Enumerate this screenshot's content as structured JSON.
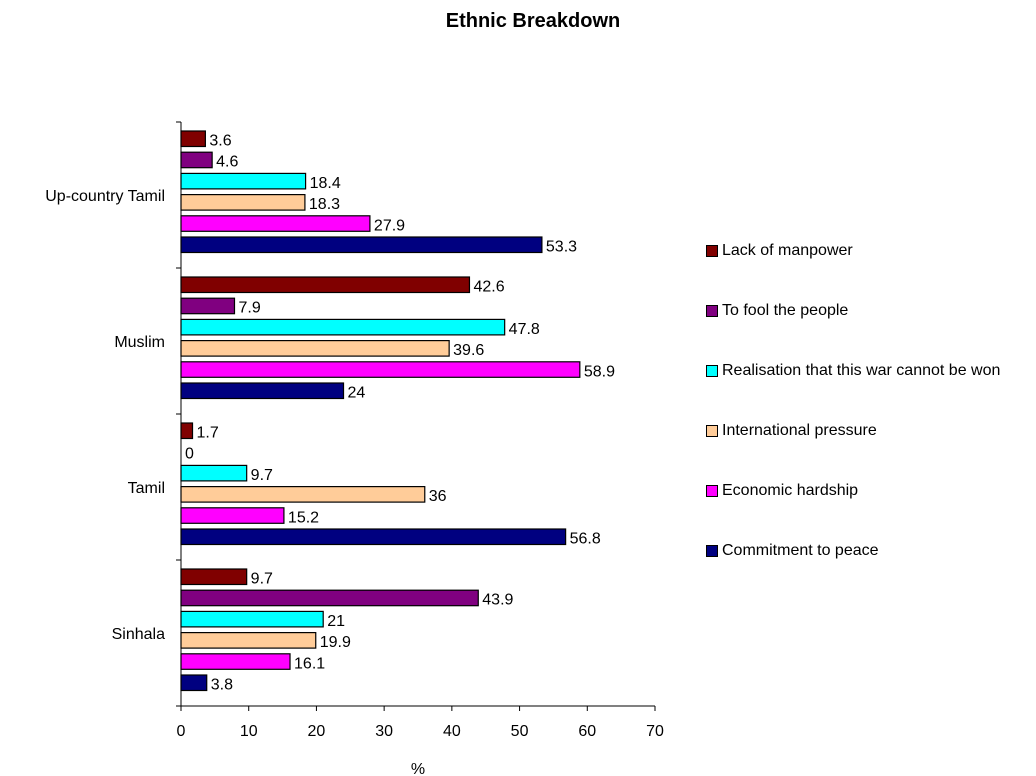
{
  "chart_data": {
    "type": "bar",
    "orientation": "horizontal",
    "title": "Ethnic Breakdown",
    "xlabel": "%",
    "ylabel": "",
    "xlim": [
      0,
      70
    ],
    "x_ticks": [
      0,
      10,
      20,
      30,
      40,
      50,
      60,
      70
    ],
    "categories": [
      "Up-country Tamil",
      "Muslim",
      "Tamil",
      "Sinhala"
    ],
    "legend_position": "right",
    "grid": false,
    "series": [
      {
        "name": "Lack of manpower",
        "color": "#800000",
        "values": [
          3.6,
          42.6,
          1.7,
          9.7
        ]
      },
      {
        "name": "To fool the people",
        "color": "#800080",
        "values": [
          4.6,
          7.9,
          0,
          43.9
        ]
      },
      {
        "name": "Realisation that this war cannot be won",
        "color": "#00FFFF",
        "values": [
          18.4,
          47.8,
          9.7,
          21
        ]
      },
      {
        "name": "International pressure",
        "color": "#FFCC99",
        "values": [
          18.3,
          39.6,
          36,
          19.9
        ]
      },
      {
        "name": "Economic hardship",
        "color": "#FF00FF",
        "values": [
          27.9,
          58.9,
          15.2,
          16.1
        ]
      },
      {
        "name": "Commitment to peace",
        "color": "#000080",
        "values": [
          53.3,
          24,
          56.8,
          3.8
        ]
      }
    ]
  }
}
